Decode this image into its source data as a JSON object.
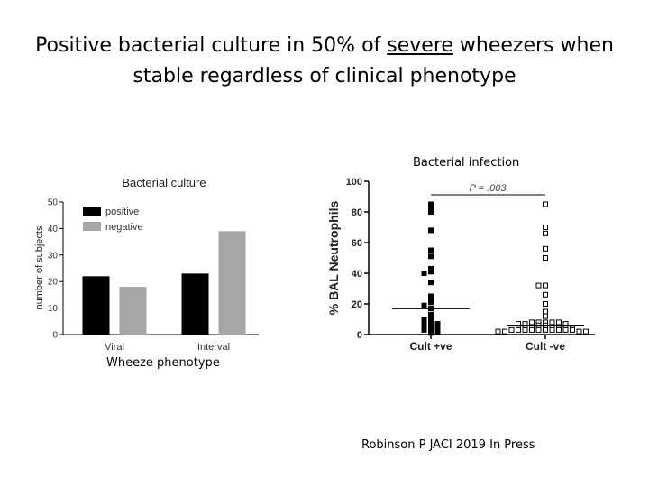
{
  "slide": {
    "title_part1": "Positive bacterial culture in 50% of ",
    "title_underlined": "severe",
    "title_part2": " wheezers when",
    "title_line2": "stable regardless of clinical phenotype",
    "left_caption": "Wheeze phenotype",
    "right_caption": "Bacterial infection",
    "citation": "Robinson P JACI 2019 In Press"
  },
  "chart_data": [
    {
      "type": "bar",
      "title": "Bacterial culture",
      "xlabel": "",
      "ylabel": "number of subjects",
      "ylim": [
        0,
        50
      ],
      "yticks": [
        0,
        10,
        20,
        30,
        40,
        50
      ],
      "categories": [
        "Viral",
        "Interval"
      ],
      "series": [
        {
          "name": "positive",
          "color": "#000000",
          "values": [
            22,
            23
          ]
        },
        {
          "name": "negative",
          "color": "#a6a6a6",
          "values": [
            18,
            39
          ]
        }
      ],
      "legend": "top-left",
      "grid": false
    },
    {
      "type": "scatter",
      "ylabel": "% BAL Neutrophils",
      "ylim": [
        0,
        100
      ],
      "yticks": [
        0,
        20,
        40,
        60,
        80,
        100
      ],
      "categories": [
        "Cult +ve",
        "Cult -ve"
      ],
      "annotation": "P = .003",
      "series": [
        {
          "name": "Cult +ve",
          "marker": "filled-square",
          "median": 17,
          "values": [
            85,
            82,
            80,
            68,
            55,
            51,
            43,
            41,
            40,
            34,
            25,
            22,
            21,
            19,
            17,
            13,
            11,
            10,
            8,
            7,
            7,
            6,
            5,
            4,
            3,
            3,
            2,
            1
          ]
        },
        {
          "name": "Cult -ve",
          "marker": "open-square",
          "median": 6,
          "values": [
            85,
            70,
            66,
            56,
            50,
            32,
            32,
            26,
            20,
            15,
            12,
            8,
            8,
            8,
            8,
            8,
            7,
            7,
            7,
            6,
            6,
            5,
            5,
            4,
            4,
            4,
            4,
            4,
            3,
            3,
            3,
            3,
            3,
            3,
            3,
            3,
            3,
            3,
            2,
            2,
            2,
            2
          ]
        }
      ],
      "grid": false
    }
  ]
}
